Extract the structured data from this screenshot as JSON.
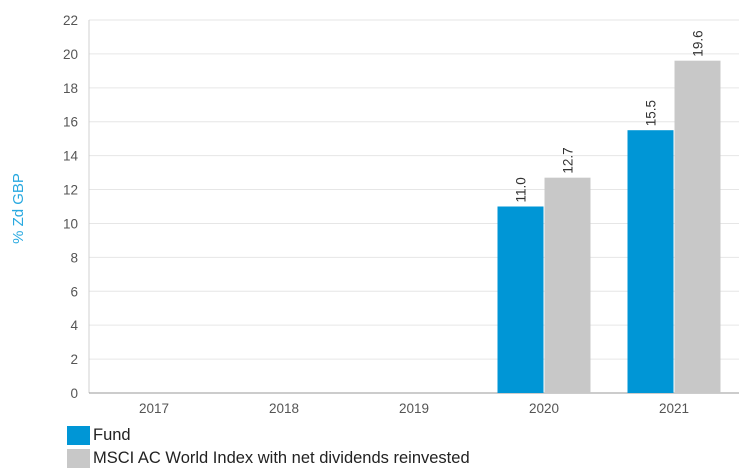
{
  "chart_data": {
    "type": "bar",
    "categories": [
      "2017",
      "2018",
      "2019",
      "2020",
      "2021"
    ],
    "series": [
      {
        "name": "Fund",
        "values": [
          null,
          null,
          null,
          11.0,
          15.5
        ],
        "labels": [
          "",
          "",
          "",
          "11.0",
          "15.5"
        ],
        "color": "#0096d6"
      },
      {
        "name": "MSCI AC World Index with net dividends reinvested",
        "values": [
          null,
          null,
          null,
          12.7,
          19.6
        ],
        "labels": [
          "",
          "",
          "",
          "12.7",
          "19.6"
        ],
        "color": "#c8c8c8"
      }
    ],
    "ylabel": "% Zd GBP",
    "ylabel_color": "#29a9e0",
    "ylim": [
      0,
      22
    ],
    "yticks": [
      "0",
      "2",
      "4",
      "6",
      "8",
      "10",
      "12",
      "14",
      "16",
      "18",
      "20",
      "22"
    ],
    "grid": true,
    "legend_position": "bottom-left"
  }
}
